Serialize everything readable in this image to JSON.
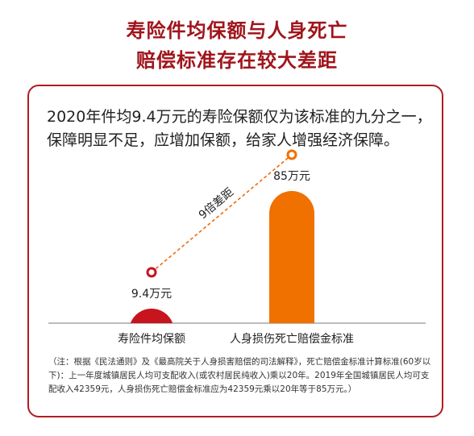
{
  "header": {
    "title_line1": "寿险件均保额与人身死亡",
    "title_line2": "赔偿标准存在较大差距"
  },
  "body_text": "2020年件均9.4万元的寿险保额仅为该标准的九分之一，保障明显不足，应增加保额，给家人增强经济保障。",
  "footnote": "（注：根据《民法通则》及《最高院关于人身损害赔偿的司法解释》，死亡赔偿金标准计算标准(60岁以下)：上一年度城镇居民人均可支配收入(或农村居民纯收入)乘以20年。2019年全国城镇居民人均可支配收入42359元，人身损伤死亡赔偿金标准应为42359元乘以20年等于85万元。）",
  "colors": {
    "title": "#a0151c",
    "bar1": "#c8141e",
    "bar2": "#f07000",
    "dashed_line": "#ee6a10",
    "border": "#b01c24"
  },
  "chart_data": {
    "type": "bar",
    "categories": [
      "寿险件均保额",
      "人身损伤死亡赔偿金标准"
    ],
    "values": [
      9.4,
      85
    ],
    "value_labels": [
      "9.4万元",
      "85万元"
    ],
    "annotation": "9倍差距",
    "title": "",
    "xlabel": "",
    "ylabel": "",
    "ylim": [
      0,
      85
    ],
    "grid": false
  }
}
